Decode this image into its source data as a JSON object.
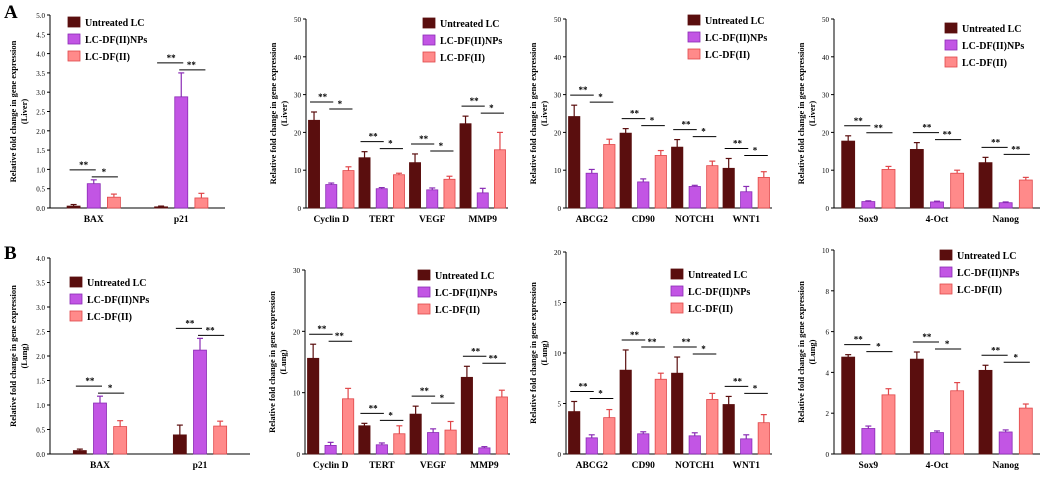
{
  "panel_labels": {
    "a": "A",
    "b": "B"
  },
  "colors": {
    "untreated": "#5a0e0e",
    "nps": "#c255e4",
    "df": "#ff8a8a",
    "nps_stroke": "#8a2bb5",
    "df_stroke": "#e0474a"
  },
  "chart_data": [
    {
      "id": "a1",
      "type": "bar",
      "ylabel": "Relative fold change in gene expression (Liver)",
      "ylim": [
        0,
        5.0
      ],
      "yticks": [
        0,
        0.5,
        1.0,
        1.5,
        2.0,
        2.5,
        3.0,
        3.5,
        4.0,
        4.5,
        5.0
      ],
      "ytick_labels": [
        "0.0",
        "0.5",
        "1.0",
        "1.5",
        "2.0",
        "2.5",
        "3.0",
        "3.5",
        "4.0",
        "4.5",
        "5.0"
      ],
      "categories": [
        "BAX",
        "p21"
      ],
      "legend": [
        "Untreated LC",
        "LC-DF(II)NPs",
        "LC-DF(II)"
      ],
      "series": [
        {
          "name": "Untreated LC",
          "values": [
            0.05,
            0.03
          ],
          "errors": [
            0.04,
            0.02
          ]
        },
        {
          "name": "LC-DF(II)NPs",
          "values": [
            0.63,
            2.88
          ],
          "errors": [
            0.1,
            0.62
          ]
        },
        {
          "name": "LC-DF(II)",
          "values": [
            0.28,
            0.26
          ],
          "errors": [
            0.08,
            0.12
          ]
        }
      ],
      "sig": [
        [
          "**",
          "*"
        ],
        [
          "**",
          "**"
        ]
      ]
    },
    {
      "id": "a2",
      "type": "bar",
      "ylabel": "Relative fold change in gene expression (Liver)",
      "ylim": [
        0,
        50
      ],
      "yticks": [
        0,
        10,
        20,
        30,
        40,
        50
      ],
      "ytick_labels": [
        "0",
        "10",
        "20",
        "30",
        "40",
        "50"
      ],
      "categories": [
        "Cyclin D",
        "TERT",
        "VEGF",
        "MMP9"
      ],
      "legend": [
        "Untreated LC",
        "LC-DF(II)NPs",
        "LC-DF(II)"
      ],
      "series": [
        {
          "name": "Untreated LC",
          "values": [
            23.2,
            13.3,
            12.0,
            22.3
          ],
          "errors": [
            2.2,
            1.6,
            2.3,
            2.0
          ]
        },
        {
          "name": "LC-DF(II)NPs",
          "values": [
            6.2,
            5.1,
            4.8,
            4.0
          ],
          "errors": [
            0.4,
            0.3,
            0.5,
            1.2
          ]
        },
        {
          "name": "LC-DF(II)",
          "values": [
            9.9,
            8.8,
            7.6,
            15.4
          ],
          "errors": [
            1.0,
            0.4,
            0.8,
            4.6
          ]
        }
      ],
      "sig": [
        [
          "**",
          "*"
        ],
        [
          "**",
          "*"
        ],
        [
          "**",
          "*"
        ],
        [
          "**",
          "*"
        ]
      ]
    },
    {
      "id": "a3",
      "type": "bar",
      "ylabel": "Relative fold change in gene expression (Liver)",
      "ylim": [
        0,
        50
      ],
      "yticks": [
        0,
        10,
        20,
        30,
        40,
        50
      ],
      "ytick_labels": [
        "0",
        "10",
        "20",
        "30",
        "40",
        "50"
      ],
      "categories": [
        "ABCG2",
        "CD90",
        "NOTCH1",
        "WNT1"
      ],
      "legend": [
        "Untreated LC",
        "LC-DF(II)NPs",
        "LC-DF(II)"
      ],
      "series": [
        {
          "name": "Untreated LC",
          "values": [
            24.2,
            19.8,
            16.1,
            10.5
          ],
          "errors": [
            3.0,
            1.2,
            2.0,
            2.6
          ]
        },
        {
          "name": "LC-DF(II)NPs",
          "values": [
            9.2,
            6.9,
            5.7,
            4.3
          ],
          "errors": [
            1.0,
            0.8,
            0.3,
            1.4
          ]
        },
        {
          "name": "LC-DF(II)",
          "values": [
            16.8,
            13.9,
            11.2,
            8.1
          ],
          "errors": [
            1.4,
            1.3,
            1.2,
            1.5
          ]
        }
      ],
      "sig": [
        [
          "**",
          "*"
        ],
        [
          "**",
          "*"
        ],
        [
          "**",
          "*"
        ],
        [
          "**",
          "*"
        ]
      ]
    },
    {
      "id": "a4",
      "type": "bar",
      "ylabel": "Relative fold change in gene expression (Liver)",
      "ylim": [
        0,
        50
      ],
      "yticks": [
        0,
        10,
        20,
        30,
        40,
        50
      ],
      "ytick_labels": [
        "0",
        "10",
        "20",
        "30",
        "40",
        "50"
      ],
      "categories": [
        "Sox9",
        "4-Oct",
        "Nanog"
      ],
      "legend": [
        "Untreated LC",
        "LC-DF(II)NPs",
        "LC-DF(II)"
      ],
      "series": [
        {
          "name": "Untreated LC",
          "values": [
            17.7,
            15.5,
            12.0
          ],
          "errors": [
            1.4,
            1.8,
            1.4
          ]
        },
        {
          "name": "LC-DF(II)NPs",
          "values": [
            1.7,
            1.6,
            1.4
          ],
          "errors": [
            0.2,
            0.2,
            0.2
          ]
        },
        {
          "name": "LC-DF(II)",
          "values": [
            10.2,
            9.2,
            7.4
          ],
          "errors": [
            0.8,
            0.8,
            0.7
          ]
        }
      ],
      "sig": [
        [
          "**",
          "**"
        ],
        [
          "**",
          "**"
        ],
        [
          "**",
          "**"
        ]
      ]
    },
    {
      "id": "b1",
      "type": "bar",
      "ylabel": "Relative fold change in gene expression (Lung)",
      "ylim": [
        0,
        4.0
      ],
      "yticks": [
        0,
        0.5,
        1.0,
        1.5,
        2.0,
        2.5,
        3.0,
        3.5,
        4.0
      ],
      "ytick_labels": [
        "0.0",
        "0.5",
        "1.0",
        "1.5",
        "2.0",
        "2.5",
        "3.0",
        "3.5",
        "4.0"
      ],
      "categories": [
        "BAX",
        "p21"
      ],
      "legend": [
        "Untreated LC",
        "LC-DF(II)NPs",
        "LC-DF(II)"
      ],
      "series": [
        {
          "name": "Untreated LC",
          "values": [
            0.07,
            0.39
          ],
          "errors": [
            0.03,
            0.2
          ]
        },
        {
          "name": "LC-DF(II)NPs",
          "values": [
            1.04,
            2.12
          ],
          "errors": [
            0.14,
            0.24
          ]
        },
        {
          "name": "LC-DF(II)",
          "values": [
            0.56,
            0.57
          ],
          "errors": [
            0.12,
            0.1
          ]
        }
      ],
      "sig": [
        [
          "**",
          "*"
        ],
        [
          "**",
          "**"
        ]
      ]
    },
    {
      "id": "b2",
      "type": "bar",
      "ylabel": "Relative fold change in gene expression (Lung)",
      "ylim": [
        0,
        30
      ],
      "yticks": [
        0,
        10,
        20,
        30
      ],
      "ytick_labels": [
        "0",
        "10",
        "20",
        "30"
      ],
      "categories": [
        "Cyclin D",
        "TERT",
        "VEGF",
        "MMP9"
      ],
      "legend": [
        "Untreated LC",
        "LC-DF(II)NPs",
        "LC-DF(II)"
      ],
      "series": [
        {
          "name": "Untreated LC",
          "values": [
            15.6,
            4.6,
            6.5,
            12.5
          ],
          "errors": [
            2.3,
            0.4,
            1.3,
            1.8
          ]
        },
        {
          "name": "LC-DF(II)NPs",
          "values": [
            1.4,
            1.5,
            3.5,
            1.0
          ],
          "errors": [
            0.5,
            0.3,
            0.6,
            0.2
          ]
        },
        {
          "name": "LC-DF(II)",
          "values": [
            9.0,
            3.3,
            3.9,
            9.3
          ],
          "errors": [
            1.7,
            1.3,
            1.4,
            1.1
          ]
        }
      ],
      "sig": [
        [
          "**",
          "**"
        ],
        [
          "**",
          "*"
        ],
        [
          "**",
          "*"
        ],
        [
          "**",
          "**"
        ]
      ]
    },
    {
      "id": "b3",
      "type": "bar",
      "ylabel": "Relative fold change in gene expression (Lung)",
      "ylim": [
        0,
        20
      ],
      "yticks": [
        0,
        5,
        10,
        15,
        20
      ],
      "ytick_labels": [
        "0",
        "5",
        "10",
        "15",
        "20"
      ],
      "categories": [
        "ABCG2",
        "CD90",
        "NOTCH1",
        "WNT1"
      ],
      "legend": [
        "Untreated LC",
        "LC-DF(II)NPs",
        "LC-DF(II)"
      ],
      "series": [
        {
          "name": "Untreated LC",
          "values": [
            4.2,
            8.3,
            8.0,
            4.9
          ],
          "errors": [
            1.0,
            2.0,
            1.6,
            0.8
          ]
        },
        {
          "name": "LC-DF(II)NPs",
          "values": [
            1.6,
            2.0,
            1.8,
            1.5
          ],
          "errors": [
            0.3,
            0.2,
            0.3,
            0.4
          ]
        },
        {
          "name": "LC-DF(II)",
          "values": [
            3.6,
            7.4,
            5.4,
            3.1
          ],
          "errors": [
            0.8,
            0.6,
            0.6,
            0.8
          ]
        }
      ],
      "sig": [
        [
          "**",
          "*"
        ],
        [
          "**",
          "**"
        ],
        [
          "**",
          "*"
        ],
        [
          "**",
          "*"
        ]
      ]
    },
    {
      "id": "b4",
      "type": "bar",
      "ylabel": "Relative fold change in gene expression (Lung)",
      "ylim": [
        0,
        10
      ],
      "yticks": [
        0,
        2,
        4,
        6,
        8,
        10
      ],
      "ytick_labels": [
        "0",
        "2",
        "4",
        "6",
        "8",
        "10"
      ],
      "categories": [
        "Sox9",
        "4-Oct",
        "Nanog"
      ],
      "legend": [
        "Untreated LC",
        "LC-DF(II)NPs",
        "LC-DF(II)"
      ],
      "series": [
        {
          "name": "Untreated LC",
          "values": [
            4.75,
            4.65,
            4.1
          ],
          "errors": [
            0.12,
            0.35,
            0.25
          ]
        },
        {
          "name": "LC-DF(II)NPs",
          "values": [
            1.25,
            1.05,
            1.08
          ],
          "errors": [
            0.12,
            0.08,
            0.1
          ]
        },
        {
          "name": "LC-DF(II)",
          "values": [
            2.9,
            3.1,
            2.25
          ],
          "errors": [
            0.3,
            0.4,
            0.2
          ]
        }
      ],
      "sig": [
        [
          "**",
          "*"
        ],
        [
          "**",
          "*"
        ],
        [
          "**",
          "*"
        ]
      ]
    }
  ]
}
